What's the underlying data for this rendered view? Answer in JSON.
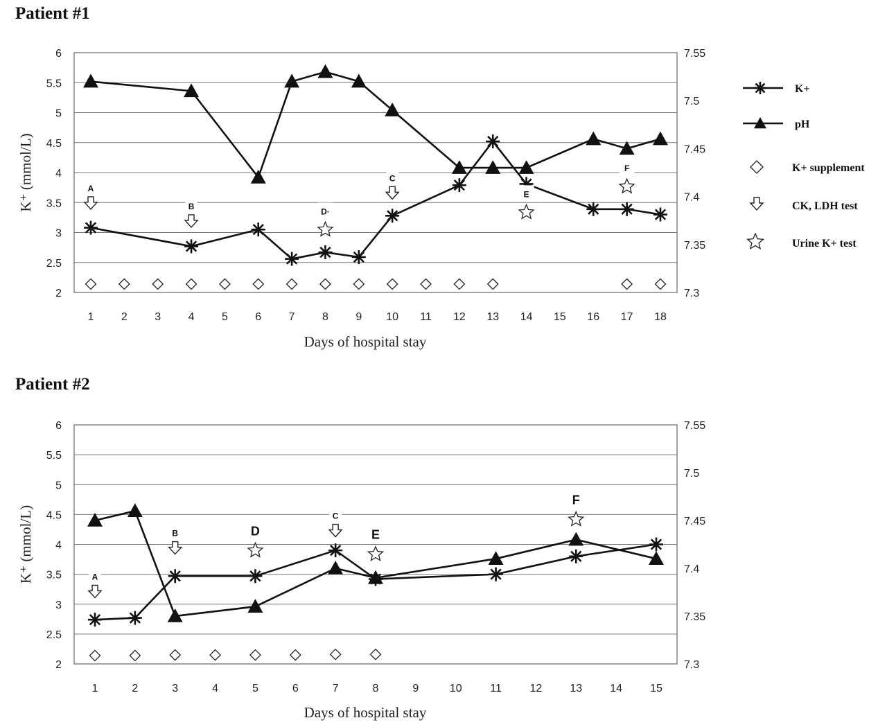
{
  "legend": {
    "position": "right of top chart",
    "items": [
      {
        "label": "K+",
        "icon": "asterisk-line"
      },
      {
        "label": "pH",
        "icon": "triangle-line"
      },
      {
        "label": "K+ supplement",
        "icon": "diamond"
      },
      {
        "label": "CK, LDH test",
        "icon": "down-arrow"
      },
      {
        "label": "Urine K+ test",
        "icon": "star"
      }
    ]
  },
  "chart_data": [
    {
      "type": "line",
      "title": "Patient #1",
      "xlabel": "Days of hospital stay",
      "ylabel": "K⁺ (mmol/L)",
      "ylim": [
        2,
        6
      ],
      "yticks": [
        "2",
        "2.5",
        "3",
        "3.5",
        "4",
        "4.5",
        "5",
        "5.5",
        "6"
      ],
      "y2lim": [
        7.3,
        7.55
      ],
      "y2ticks": [
        "7.3",
        "7.35",
        "7.4",
        "7.45",
        "7.5",
        "7.55"
      ],
      "categories": [
        "1",
        "2",
        "3",
        "4",
        "5",
        "6",
        "7",
        "8",
        "9",
        "10",
        "11",
        "12",
        "13",
        "14",
        "15",
        "16",
        "17",
        "18"
      ],
      "grid": true,
      "series": [
        {
          "name": "K+",
          "axis": "left",
          "x": [
            "1",
            "4",
            "6",
            "7",
            "8",
            "9",
            "10",
            "12",
            "13",
            "14",
            "16",
            "17",
            "18"
          ],
          "values": [
            3.08,
            2.77,
            3.05,
            2.56,
            2.67,
            2.59,
            3.28,
            3.79,
            4.52,
            3.81,
            3.39,
            3.39,
            3.3
          ]
        },
        {
          "name": "pH",
          "axis": "right",
          "x": [
            "1",
            "4",
            "6",
            "7",
            "8",
            "9",
            "10",
            "12",
            "13",
            "14",
            "16",
            "17",
            "18"
          ],
          "values": [
            7.52,
            7.51,
            7.42,
            7.52,
            7.53,
            7.52,
            7.49,
            7.43,
            7.43,
            7.43,
            7.46,
            7.45,
            7.46
          ]
        },
        {
          "name": "K+ supplement",
          "axis": "left",
          "x": [
            "1",
            "2",
            "3",
            "4",
            "5",
            "6",
            "7",
            "8",
            "9",
            "10",
            "11",
            "12",
            "13",
            "17",
            "18"
          ],
          "values": [
            2.14,
            2.14,
            2.14,
            2.14,
            2.14,
            2.14,
            2.14,
            2.14,
            2.14,
            2.14,
            2.14,
            2.14,
            2.14,
            2.14,
            2.14
          ]
        }
      ],
      "annotations": [
        {
          "label": "A",
          "marker": "down-arrow",
          "x": "1",
          "y": 3.48
        },
        {
          "label": "B",
          "marker": "down-arrow",
          "x": "4",
          "y": 3.18
        },
        {
          "label": "C",
          "marker": "down-arrow",
          "x": "10",
          "y": 3.65
        },
        {
          "label": "D·",
          "marker": "star",
          "x": "8",
          "y": 3.07
        },
        {
          "label": "E",
          "marker": "star",
          "x": "14",
          "y": 3.36
        },
        {
          "label": "F",
          "marker": "star",
          "x": "17",
          "y": 3.79
        }
      ]
    },
    {
      "type": "line",
      "title": "Patient #2",
      "xlabel": "Days of hospital stay",
      "ylabel": "K⁺ (mmol/L)",
      "ylim": [
        2,
        6
      ],
      "yticks": [
        "2",
        "2.5",
        "3",
        "3.5",
        "4",
        "4.5",
        "5",
        "5.5",
        "6"
      ],
      "y2lim": [
        7.3,
        7.55
      ],
      "y2ticks": [
        "7.3",
        "7.35",
        "7.4",
        "7.45",
        "7.5",
        "7.55"
      ],
      "categories": [
        "1",
        "2",
        "3",
        "4",
        "5",
        "6",
        "7",
        "8",
        "9",
        "10",
        "11",
        "12",
        "13",
        "14",
        "15"
      ],
      "grid": true,
      "series": [
        {
          "name": "K+",
          "axis": "left",
          "x": [
            "1",
            "2",
            "3",
            "5",
            "7",
            "8",
            "11",
            "13",
            "15"
          ],
          "values": [
            2.74,
            2.77,
            3.47,
            3.47,
            3.9,
            3.42,
            3.5,
            3.8,
            4.0
          ]
        },
        {
          "name": "pH",
          "axis": "right",
          "x": [
            "1",
            "2",
            "3",
            "5",
            "7",
            "8",
            "11",
            "13",
            "15"
          ],
          "values": [
            7.45,
            7.46,
            7.35,
            7.36,
            7.4,
            7.39,
            7.41,
            7.43,
            7.41
          ]
        },
        {
          "name": "K+ supplement",
          "axis": "left",
          "x": [
            "1",
            "2",
            "3",
            "4",
            "5",
            "6",
            "7",
            "8"
          ],
          "values": [
            2.14,
            2.14,
            2.15,
            2.15,
            2.15,
            2.15,
            2.16,
            2.16
          ]
        }
      ],
      "annotations": [
        {
          "label": "A",
          "marker": "down-arrow",
          "x": "1",
          "y": 3.2
        },
        {
          "label": "B",
          "marker": "down-arrow",
          "x": "3",
          "y": 3.93
        },
        {
          "label": "C",
          "marker": "down-arrow",
          "x": "7",
          "y": 4.22
        },
        {
          "label": "D",
          "marker": "star",
          "x": "5",
          "y": 3.92
        },
        {
          "label": "E",
          "marker": "star",
          "x": "8",
          "y": 3.86
        },
        {
          "label": "F",
          "marker": "star",
          "x": "13",
          "y": 4.44
        }
      ]
    }
  ]
}
